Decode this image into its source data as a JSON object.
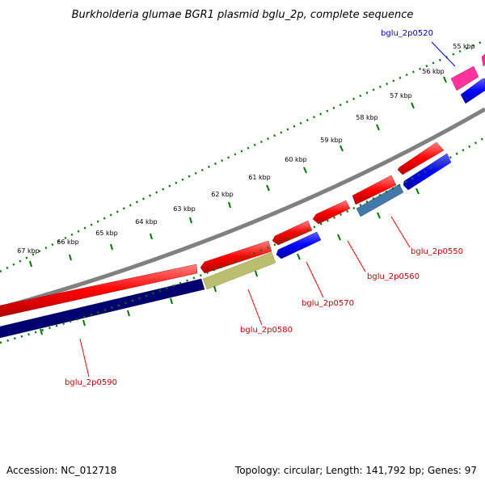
{
  "title": "Burkholderia glumae BGR1 plasmid bglu_2p, complete sequence",
  "footer": {
    "accession": "Accession: NC_012718",
    "summary": "Topology: circular; Length: 141,792 bp; Genes: 97"
  },
  "ruler_labels": [
    "55 kbp",
    "56 kbp",
    "57 kbp",
    "58 kbp",
    "59 kbp",
    "60 kbp",
    "61 kbp",
    "62 kbp",
    "63 kbp",
    "64 kbp",
    "65 kbp",
    "66 kbp",
    "67 kbp"
  ],
  "gene_labels": [
    {
      "text": "bglu_2p0520",
      "color": "#0000cc"
    },
    {
      "text": "bglu_2p0550",
      "color": "#cc0000"
    },
    {
      "text": "bglu_2p0560",
      "color": "#cc0000"
    },
    {
      "text": "bglu_2p0570",
      "color": "#cc0000"
    },
    {
      "text": "bglu_2p0580",
      "color": "#cc0000"
    },
    {
      "text": "bglu_2p0590",
      "color": "#cc0000"
    }
  ],
  "colors": {
    "backbone": "#808080",
    "cds_forward": "#ff0000",
    "cds_reverse": "#0000ff",
    "tick": "#007700",
    "label_line_red": "#ff0000",
    "label_line_blue": "#0000ff"
  }
}
